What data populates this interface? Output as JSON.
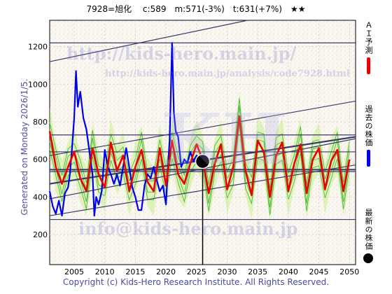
{
  "header": {
    "title": "7928=旭化　 c:589　m:571(-3%)　t:631(+7%)　★★"
  },
  "side_note": "Generated on Monday 2026/1/5.",
  "footer": {
    "copyright": "Copyright (c) Kids-Hero Research Institute. All Rights Reserved."
  },
  "watermarks": {
    "top": "http://kids-hero.main.jp/",
    "mid": "http://kids-hero.main.jp/analysis/code7928.html",
    "bottom": "info@kids-hero.main.jp",
    "big": "KH"
  },
  "legend": [
    {
      "label": "ＡＩ予測",
      "color": "#ee0000",
      "kind": "line"
    },
    {
      "label": "過去の株価",
      "color": "#0000ee",
      "kind": "line"
    },
    {
      "label": "最新の株価",
      "color": "#000000",
      "kind": "dot"
    }
  ],
  "chart_data": {
    "type": "line",
    "x_ticks": [
      2005,
      2010,
      2015,
      2020,
      2025,
      2030,
      2035,
      2040,
      2045,
      2050
    ],
    "y_ticks": [
      200,
      400,
      600,
      800,
      1000,
      1200
    ],
    "xlim": [
      2001,
      2051
    ],
    "ylim": [
      40,
      1340
    ],
    "latest": {
      "x": 2026.0,
      "y": 589
    },
    "horizontal_lines": [
      1220,
      730,
      640,
      545,
      535,
      280
    ],
    "trend_lines": [
      {
        "x": [
          2001,
          2051
        ],
        "y": [
          1120,
          1460
        ]
      },
      {
        "x": [
          2001,
          2051
        ],
        "y": [
          620,
          910
        ]
      },
      {
        "x": [
          2001,
          2051
        ],
        "y": [
          470,
          720
        ]
      },
      {
        "x": [
          2001,
          2051
        ],
        "y": [
          390,
          710
        ]
      },
      {
        "x": [
          2001,
          2051
        ],
        "y": [
          300,
          570
        ]
      }
    ],
    "series": [
      {
        "name": "過去の株価",
        "x": [
          2001,
          2001.5,
          2002,
          2002.5,
          2003,
          2003.5,
          2004,
          2004.3,
          2004.6,
          2005,
          2005.3,
          2005.6,
          2006,
          2006.5,
          2007,
          2007.5,
          2008,
          2008.3,
          2008.6,
          2009,
          2009.5,
          2010,
          2010.5,
          2011,
          2011.5,
          2012,
          2012.5,
          2013,
          2013.5,
          2014,
          2014.5,
          2015,
          2015.5,
          2016,
          2016.5,
          2017,
          2017.5,
          2018,
          2018.5,
          2019,
          2019.5,
          2020,
          2020.3,
          2020.6,
          2020.8,
          2021,
          2021.3,
          2021.6,
          2022,
          2022.5,
          2023,
          2023.5,
          2024,
          2024.5,
          2025,
          2025.5
        ],
        "values": [
          430,
          350,
          310,
          380,
          300,
          420,
          450,
          520,
          640,
          820,
          1070,
          880,
          960,
          820,
          760,
          640,
          520,
          300,
          400,
          360,
          430,
          650,
          560,
          520,
          470,
          520,
          460,
          560,
          660,
          560,
          450,
          400,
          330,
          330,
          460,
          520,
          500,
          560,
          490,
          430,
          460,
          360,
          540,
          700,
          960,
          1220,
          850,
          750,
          720,
          560,
          600,
          580,
          640,
          590,
          620,
          570
        ]
      },
      {
        "name": "ＡＩ予測",
        "x": [
          2001,
          2002,
          2003,
          2004,
          2005,
          2006,
          2007,
          2008,
          2009,
          2010,
          2011,
          2012,
          2013,
          2014,
          2015,
          2016,
          2017,
          2018,
          2019,
          2020,
          2021,
          2022,
          2023,
          2024,
          2025,
          2026,
          2027,
          2028,
          2029,
          2030,
          2031,
          2032,
          2033,
          2034,
          2035,
          2036,
          2037,
          2038,
          2039,
          2040,
          2041,
          2042,
          2043,
          2044,
          2045,
          2046,
          2047,
          2048,
          2049,
          2050
        ],
        "values": [
          750,
          560,
          470,
          560,
          640,
          500,
          430,
          660,
          520,
          450,
          690,
          540,
          620,
          430,
          560,
          650,
          480,
          430,
          660,
          460,
          700,
          520,
          470,
          580,
          680,
          600,
          420,
          580,
          680,
          440,
          560,
          830,
          540,
          410,
          700,
          640,
          400,
          620,
          690,
          430,
          580,
          680,
          420,
          600,
          660,
          440,
          590,
          650,
          430,
          600
        ]
      }
    ]
  }
}
